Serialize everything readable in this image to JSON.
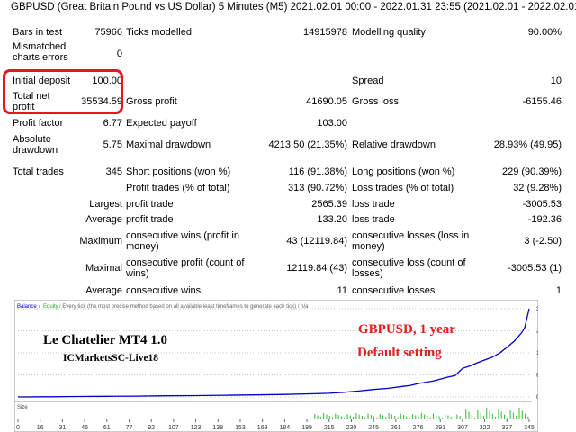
{
  "header": "GBPUSD (Great Britain Pound vs US Dollar)   5 Minutes (M5) 2021.02.01 00:00 - 2022.01.31 23:55 (2021.02.01 - 2022.02.01)",
  "report": {
    "bars_label": "Bars in test",
    "bars_value": "75966",
    "ticks_label": "Ticks modelled",
    "ticks_value": "14915978",
    "quality_label": "Modelling quality",
    "quality_value": "90.00%",
    "mismatch_label": "Mismatched\ncharts errors",
    "mismatch_value": "0",
    "deposit_label": "Initial deposit",
    "deposit_value": "100.00",
    "spread_label": "Spread",
    "spread_value": "10",
    "netprofit_label": "Total net\nprofit",
    "netprofit_value": "35534.59",
    "grossprofit_label": "Gross profit",
    "grossprofit_value": "41690.05",
    "grossloss_label": "Gross loss",
    "grossloss_value": "-6155.46",
    "pf_label": "Profit factor",
    "pf_value": "6.77",
    "payoff_label": "Expected payoff",
    "payoff_value": "103.00",
    "absdd_label": "Absolute\ndrawdown",
    "absdd_value": "5.75",
    "maxdd_label": "Maximal drawdown",
    "maxdd_value": "4213.50 (21.35%)",
    "reldd_label": "Relative drawdown",
    "reldd_value": "28.93% (49.95)",
    "trades_label": "Total trades",
    "trades_value": "345",
    "short_label": "Short positions (won %)",
    "short_value": "116 (91.38%)",
    "long_label": "Long positions (won %)",
    "long_value": "229 (90.39%)",
    "pt_label": "Profit trades (% of total)",
    "pt_value": "313 (90.72%)",
    "lt_label": "Loss trades (% of total)",
    "lt_value": "32 (9.28%)",
    "largest_label": "Largest",
    "average_label": "Average",
    "maximum_label": "Maximum",
    "maximal_label": "Maximal",
    "lp_label": "profit trade",
    "lp_value": "2565.39",
    "ll_label": "loss trade",
    "ll_value": "-3005.53",
    "ap_label": "profit trade",
    "ap_value": "133.20",
    "al_label": "loss trade",
    "al_value": "-192.36",
    "mcw_label": "consecutive wins (profit in\nmoney)",
    "mcw_value": "43 (12119.84)",
    "mcl_label": "consecutive losses (loss in\nmoney)",
    "mcl_value": "3 (-2.50)",
    "mxcp_label": "consecutive profit (count of\nwins)",
    "mxcp_value": "12119.84 (43)",
    "mxcl_label": "consecutive loss (count of\nlosses)",
    "mxcl_value": "-3005.53 (1)",
    "acw_label": "consecutive wins",
    "acw_value": "11",
    "acl_label": "consecutive losses",
    "acl_value": "1"
  },
  "chart": {
    "legend_balance": "Balance",
    "legend_sep": " / ",
    "legend_equity": "Equity",
    "legend_rest": " / Every tick (the most precise method based on all available least timeframes to generate each tick) / n/a",
    "size_label": "Size",
    "y_ticks": [
      "35592",
      "26694",
      "17796",
      "8898",
      "0"
    ],
    "x_ticks": [
      "0",
      "16",
      "31",
      "46",
      "61",
      "77",
      "92",
      "107",
      "123",
      "138",
      "153",
      "169",
      "184",
      "199",
      "215",
      "230",
      "245",
      "261",
      "276",
      "291",
      "307",
      "322",
      "337",
      "353"
    ],
    "x_ticks_shown": [
      "0",
      "16",
      "31",
      "46",
      "61",
      "77",
      "92",
      "107",
      "123",
      "138",
      "153",
      "169",
      "184",
      "199",
      "215",
      "230",
      "245",
      "261",
      "276",
      "291",
      "307",
      "322",
      "337",
      "345"
    ],
    "overlay_ea": "Le Chatelier MT4 1.0",
    "overlay_broker": "ICMarketsSC-Live18",
    "overlay_symbol": "GBPUSD,  1 year",
    "overlay_setting": "Default setting",
    "colors": {
      "balance": "#0000c8",
      "grid": "#c8c8c8",
      "size_bars": "#33bb33",
      "highlight": "#e8141e",
      "overlay_red": "#e02020"
    },
    "balance_points": [
      [
        0,
        0
      ],
      [
        20,
        90
      ],
      [
        40,
        180
      ],
      [
        60,
        260
      ],
      [
        80,
        340
      ],
      [
        100,
        460
      ],
      [
        120,
        560
      ],
      [
        140,
        700
      ],
      [
        160,
        830
      ],
      [
        180,
        1010
      ],
      [
        200,
        1300
      ],
      [
        210,
        1500
      ],
      [
        220,
        1900
      ],
      [
        230,
        2400
      ],
      [
        240,
        3000
      ],
      [
        250,
        3500
      ],
      [
        260,
        4300
      ],
      [
        265,
        4700
      ],
      [
        270,
        5400
      ],
      [
        280,
        6400
      ],
      [
        285,
        7200
      ],
      [
        290,
        8000
      ],
      [
        295,
        8600
      ],
      [
        300,
        11500
      ],
      [
        305,
        12500
      ],
      [
        310,
        13800
      ],
      [
        320,
        16000
      ],
      [
        325,
        17700
      ],
      [
        330,
        20000
      ],
      [
        335,
        22500
      ],
      [
        340,
        26000
      ],
      [
        342,
        28000
      ],
      [
        345,
        35592
      ]
    ],
    "x_max": 345,
    "y_max": 35592
  }
}
